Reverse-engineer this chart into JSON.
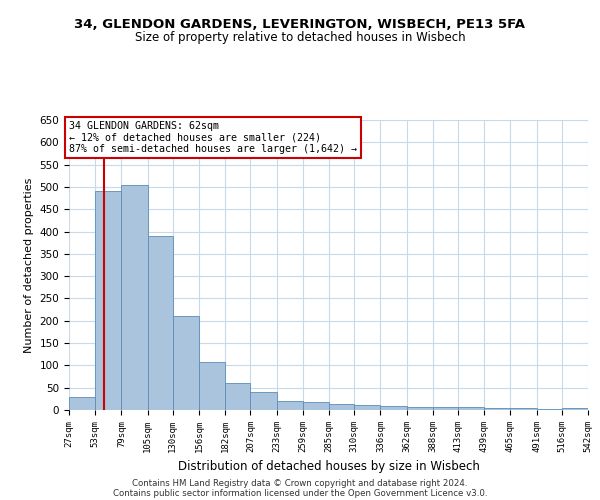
{
  "title1": "34, GLENDON GARDENS, LEVERINGTON, WISBECH, PE13 5FA",
  "title2": "Size of property relative to detached houses in Wisbech",
  "xlabel": "Distribution of detached houses by size in Wisbech",
  "ylabel": "Number of detached properties",
  "footer1": "Contains HM Land Registry data © Crown copyright and database right 2024.",
  "footer2": "Contains public sector information licensed under the Open Government Licence v3.0.",
  "annotation_title": "34 GLENDON GARDENS: 62sqm",
  "annotation_line2": "← 12% of detached houses are smaller (224)",
  "annotation_line3": "87% of semi-detached houses are larger (1,642) →",
  "property_size": 62,
  "bar_values": [
    30,
    490,
    505,
    390,
    210,
    107,
    60,
    40,
    20,
    17,
    13,
    11,
    10,
    7,
    7,
    7,
    5,
    5,
    3,
    5
  ],
  "bin_edges": [
    27,
    53,
    79,
    105,
    130,
    156,
    182,
    207,
    233,
    259,
    285,
    310,
    336,
    362,
    388,
    413,
    439,
    465,
    491,
    516,
    542
  ],
  "bin_labels": [
    "27sqm",
    "53sqm",
    "79sqm",
    "105sqm",
    "130sqm",
    "156sqm",
    "182sqm",
    "207sqm",
    "233sqm",
    "259sqm",
    "285sqm",
    "310sqm",
    "336sqm",
    "362sqm",
    "388sqm",
    "413sqm",
    "439sqm",
    "465sqm",
    "491sqm",
    "516sqm",
    "542sqm"
  ],
  "bar_color": "#aac4de",
  "bar_edge_color": "#5b8db8",
  "red_line_color": "#cc0000",
  "annotation_box_color": "#cc0000",
  "background_color": "#ffffff",
  "grid_color": "#c8daea",
  "ylim": [
    0,
    650
  ],
  "yticks": [
    0,
    50,
    100,
    150,
    200,
    250,
    300,
    350,
    400,
    450,
    500,
    550,
    600,
    650
  ]
}
